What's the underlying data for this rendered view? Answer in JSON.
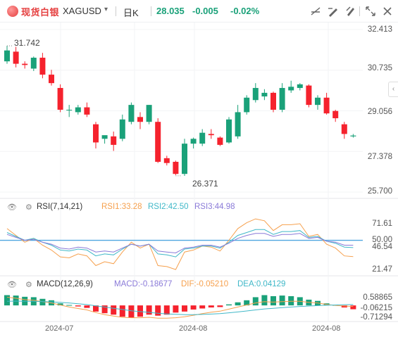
{
  "toolbar": {
    "brand": "现货白银",
    "symbol": "XAGUSD",
    "caret": "▾",
    "period": "日K",
    "price": "28.035",
    "change": "-0.005",
    "change_pct": "-0.02%",
    "icons": [
      "measure-icon",
      "draw-icon",
      "pen-icon",
      "settings-icon",
      "fullscreen-icon",
      "close-icon"
    ]
  },
  "colors": {
    "up": "#1aa179",
    "down": "#f5222d",
    "ma": "#8aa4d6",
    "rsi1": "#f6a04d",
    "rsi2": "#40b8c8",
    "rsi3": "#8a7ad8",
    "ref50": "#4fa6e0"
  },
  "price_axis": {
    "ticks": [
      "32.413",
      "30.735",
      "29.056",
      "27.378",
      "25.700"
    ]
  },
  "high_label": "31.742",
  "low_label": "26.371",
  "rsi": {
    "title": "RSI(7,14,21)",
    "rsi1": "RSI1:33.28",
    "rsi2": "RSI2:42.50",
    "rsi3": "RSI3:44.98",
    "ticks": [
      "71.61",
      "50.00",
      "46.54",
      "21.47"
    ]
  },
  "macd": {
    "title": "MACD(12,26,9)",
    "macd_val": "MACD:-0.18677",
    "dif_val": "DIF:-0.05210",
    "dea_val": "DEA:0.04129",
    "ticks": [
      "0.58865",
      "-0.06215",
      "-0.71294"
    ]
  },
  "dates": [
    "2024-07",
    "2024-08",
    "2024-08"
  ],
  "chart_data": {
    "type": "candlestick",
    "ylim": [
      25.7,
      32.413
    ],
    "candles": [
      {
        "o": 31.1,
        "h": 31.74,
        "l": 31.0,
        "c": 31.55
      },
      {
        "o": 31.5,
        "h": 31.7,
        "l": 30.85,
        "c": 31.0
      },
      {
        "o": 31.0,
        "h": 31.1,
        "l": 30.8,
        "c": 30.95
      },
      {
        "o": 30.8,
        "h": 31.3,
        "l": 30.7,
        "c": 31.25
      },
      {
        "o": 31.25,
        "h": 31.45,
        "l": 30.4,
        "c": 30.55
      },
      {
        "o": 30.55,
        "h": 30.75,
        "l": 30.1,
        "c": 30.2
      },
      {
        "o": 30.0,
        "h": 30.15,
        "l": 29.0,
        "c": 29.1
      },
      {
        "o": 29.1,
        "h": 29.3,
        "l": 28.8,
        "c": 29.1
      },
      {
        "o": 29.0,
        "h": 29.3,
        "l": 28.9,
        "c": 29.2
      },
      {
        "o": 29.2,
        "h": 29.4,
        "l": 28.8,
        "c": 28.9
      },
      {
        "o": 28.5,
        "h": 28.6,
        "l": 27.5,
        "c": 27.75
      },
      {
        "o": 27.9,
        "h": 28.0,
        "l": 27.7,
        "c": 28.05
      },
      {
        "o": 28.0,
        "h": 28.2,
        "l": 27.4,
        "c": 27.65
      },
      {
        "o": 27.9,
        "h": 28.9,
        "l": 27.8,
        "c": 28.7
      },
      {
        "o": 28.6,
        "h": 29.4,
        "l": 28.5,
        "c": 29.3
      },
      {
        "o": 28.8,
        "h": 29.0,
        "l": 28.3,
        "c": 28.6
      },
      {
        "o": 28.6,
        "h": 29.3,
        "l": 28.5,
        "c": 29.3
      },
      {
        "o": 28.6,
        "h": 28.75,
        "l": 26.9,
        "c": 26.95
      },
      {
        "o": 27.1,
        "h": 27.2,
        "l": 26.8,
        "c": 26.9
      },
      {
        "o": 26.95,
        "h": 27.0,
        "l": 26.4,
        "c": 26.45
      },
      {
        "o": 26.45,
        "h": 27.9,
        "l": 26.37,
        "c": 27.7
      },
      {
        "o": 27.7,
        "h": 27.95,
        "l": 27.5,
        "c": 27.9
      },
      {
        "o": 27.7,
        "h": 28.3,
        "l": 27.6,
        "c": 28.15
      },
      {
        "o": 28.1,
        "h": 28.3,
        "l": 27.9,
        "c": 28.05
      },
      {
        "o": 27.95,
        "h": 28.0,
        "l": 27.6,
        "c": 27.65
      },
      {
        "o": 27.75,
        "h": 28.8,
        "l": 27.7,
        "c": 28.7
      },
      {
        "o": 28.0,
        "h": 29.3,
        "l": 27.9,
        "c": 29.0
      },
      {
        "o": 29.0,
        "h": 29.7,
        "l": 28.9,
        "c": 29.6
      },
      {
        "o": 29.5,
        "h": 30.2,
        "l": 29.4,
        "c": 30.0
      },
      {
        "o": 29.65,
        "h": 29.95,
        "l": 29.5,
        "c": 29.8
      },
      {
        "o": 29.8,
        "h": 29.85,
        "l": 29.0,
        "c": 29.1
      },
      {
        "o": 29.1,
        "h": 30.2,
        "l": 29.0,
        "c": 30.0
      },
      {
        "o": 29.9,
        "h": 30.3,
        "l": 29.8,
        "c": 30.05
      },
      {
        "o": 30.0,
        "h": 30.2,
        "l": 29.9,
        "c": 30.15
      },
      {
        "o": 30.1,
        "h": 30.15,
        "l": 29.2,
        "c": 29.3
      },
      {
        "o": 29.3,
        "h": 29.7,
        "l": 29.1,
        "c": 29.6
      },
      {
        "o": 29.6,
        "h": 29.8,
        "l": 28.9,
        "c": 28.95
      },
      {
        "o": 29.05,
        "h": 29.1,
        "l": 28.6,
        "c": 28.75
      },
      {
        "o": 28.5,
        "h": 28.6,
        "l": 27.9,
        "c": 28.1
      },
      {
        "o": 28.0,
        "h": 28.1,
        "l": 27.95,
        "c": 28.035
      }
    ],
    "rsi_ylim": [
      15,
      80
    ],
    "rsi1": [
      62,
      55,
      48,
      52,
      45,
      40,
      33,
      32,
      36,
      34,
      24,
      28,
      26,
      38,
      48,
      42,
      46,
      24,
      23,
      20,
      38,
      40,
      44,
      43,
      39,
      50,
      62,
      68,
      72,
      70,
      60,
      66,
      66,
      67,
      54,
      56,
      46,
      42,
      34,
      33.28
    ],
    "rsi2": [
      58,
      54,
      50,
      52,
      48,
      45,
      40,
      39,
      41,
      40,
      34,
      36,
      35,
      41,
      46,
      44,
      46,
      36,
      35,
      33,
      41,
      42,
      44,
      44,
      42,
      48,
      55,
      58,
      61,
      61,
      56,
      59,
      59,
      60,
      53,
      54,
      49,
      47,
      43,
      42.5
    ],
    "rsi3": [
      56,
      53,
      50,
      51,
      48,
      46,
      42,
      41,
      43,
      42,
      38,
      39,
      38,
      42,
      46,
      44,
      46,
      39,
      38,
      37,
      42,
      43,
      45,
      45,
      43,
      47,
      52,
      55,
      57,
      57,
      54,
      56,
      56,
      57,
      52,
      53,
      49,
      48,
      45,
      44.98
    ],
    "macd_ylim": [
      -0.75,
      0.62
    ],
    "macd_hist": [
      0.5,
      0.48,
      0.42,
      0.4,
      0.32,
      0.25,
      0.1,
      0.02,
      -0.05,
      -0.12,
      -0.3,
      -0.38,
      -0.45,
      -0.55,
      -0.6,
      -0.55,
      -0.45,
      -0.5,
      -0.45,
      -0.35,
      -0.3,
      -0.2,
      -0.15,
      -0.1,
      -0.08,
      0.05,
      0.15,
      0.25,
      0.4,
      0.5,
      0.45,
      0.48,
      0.45,
      0.4,
      0.28,
      0.22,
      0.1,
      0.02,
      -0.1,
      -0.18677
    ],
    "dif": [
      0.4,
      0.35,
      0.28,
      0.25,
      0.18,
      0.12,
      0.02,
      -0.08,
      -0.15,
      -0.22,
      -0.35,
      -0.45,
      -0.52,
      -0.58,
      -0.6,
      -0.6,
      -0.58,
      -0.62,
      -0.62,
      -0.6,
      -0.55,
      -0.48,
      -0.4,
      -0.33,
      -0.28,
      -0.18,
      -0.08,
      0.02,
      0.12,
      0.18,
      0.16,
      0.18,
      0.2,
      0.2,
      0.15,
      0.12,
      0.05,
      0.0,
      -0.03,
      -0.0521
    ],
    "dea": [
      0.2,
      0.21,
      0.2,
      0.2,
      0.19,
      0.17,
      0.15,
      0.12,
      0.08,
      0.04,
      -0.02,
      -0.08,
      -0.14,
      -0.2,
      -0.26,
      -0.3,
      -0.34,
      -0.38,
      -0.41,
      -0.43,
      -0.45,
      -0.45,
      -0.44,
      -0.42,
      -0.4,
      -0.36,
      -0.32,
      -0.27,
      -0.22,
      -0.17,
      -0.14,
      -0.11,
      -0.08,
      -0.05,
      -0.03,
      -0.01,
      0.01,
      0.02,
      0.035,
      0.04129
    ]
  }
}
